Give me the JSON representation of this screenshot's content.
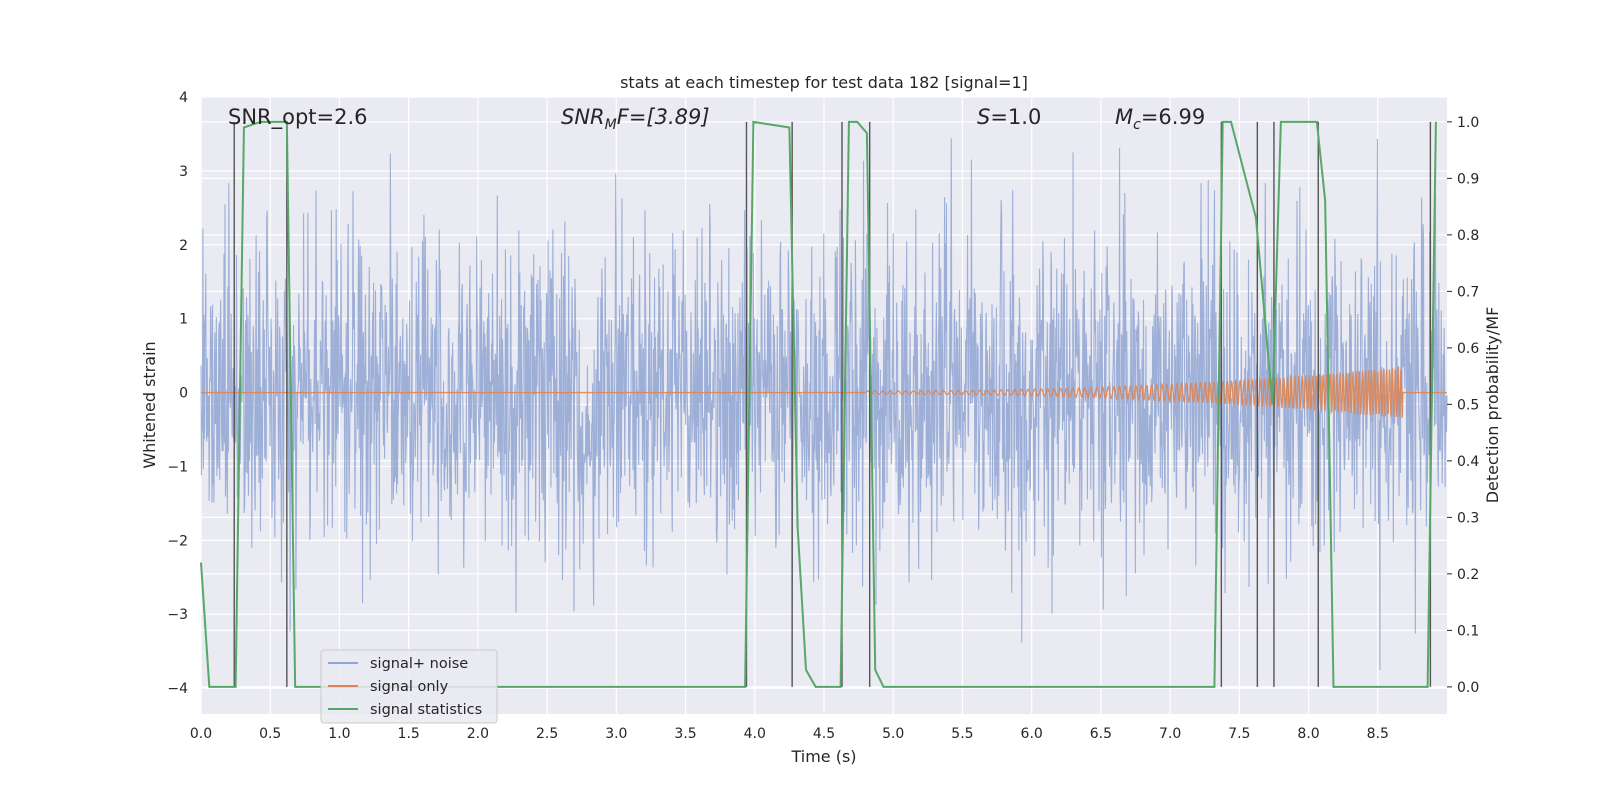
{
  "chart_data": {
    "type": "line",
    "title": "stats at each timestep for test data 182 [signal=1]",
    "xlabel": "Time (s)",
    "ylabel": "Whitened strain",
    "ylabel_right": "Detection probability/MF",
    "xlim": [
      0,
      9.0
    ],
    "ylim": [
      -4.35,
      4.0
    ],
    "ylim_right": [
      -0.048,
      1.044
    ],
    "x_ticks": [
      "0.0",
      "0.5",
      "1.0",
      "1.5",
      "2.0",
      "2.5",
      "3.0",
      "3.5",
      "4.0",
      "4.5",
      "5.0",
      "5.5",
      "6.0",
      "6.5",
      "7.0",
      "7.5",
      "8.0",
      "8.5"
    ],
    "y_ticks": [
      "4",
      "3",
      "2",
      "1",
      "0",
      "−1",
      "−2",
      "−3",
      "−4"
    ],
    "y_ticks_right": [
      "1.0",
      "0.9",
      "0.8",
      "0.7",
      "0.6",
      "0.5",
      "0.4",
      "0.3",
      "0.2",
      "0.1",
      "0.0"
    ],
    "annotations": {
      "snr_opt": "SNR_opt=2.6",
      "snr_mf_main": "SNR",
      "snr_mf_sub": "M",
      "snr_mf_tail": "F=[3.89]",
      "s_main": "S",
      "s_tail": "=1.0",
      "mc_main": "M",
      "mc_sub": "c",
      "mc_tail": "=6.99"
    },
    "series": [
      {
        "name": "signal+ noise",
        "color": "#8fa5d2",
        "kind": "noise",
        "amplitude_std": 1.0,
        "approx_range": [
          -4.0,
          3.6
        ]
      },
      {
        "name": "signal only",
        "color": "#dd8452",
        "kind": "chirp",
        "chirp_start": 4.8,
        "chirp_end": 8.68,
        "max_amplitude": 0.35
      },
      {
        "name": "signal statistics",
        "color": "#55a868",
        "x": [
          0.0,
          0.06,
          0.25,
          0.31,
          0.43,
          0.62,
          0.68,
          3.93,
          3.99,
          4.25,
          4.31,
          4.37,
          4.44,
          4.62,
          4.68,
          4.74,
          4.81,
          4.87,
          4.93,
          7.32,
          7.38,
          7.44,
          7.62,
          7.74,
          7.8,
          8.06,
          8.12,
          8.18,
          8.24,
          8.86,
          8.92
        ],
        "y": [
          0.22,
          0.0,
          0.0,
          0.99,
          1.0,
          1.0,
          0.0,
          0.0,
          1.0,
          0.99,
          0.28,
          0.03,
          0.0,
          0.0,
          1.0,
          1.0,
          0.98,
          0.03,
          0.0,
          0.0,
          1.0,
          1.0,
          0.83,
          0.5,
          1.0,
          1.0,
          0.86,
          0.0,
          0.0,
          0.0,
          1.0
        ]
      }
    ],
    "vlines": [
      0.24,
      0.62,
      3.94,
      4.27,
      4.63,
      4.83,
      7.37,
      7.63,
      7.75,
      8.07,
      8.88
    ],
    "legend": {
      "position": "bottom-left",
      "entries": [
        "signal+ noise",
        "signal only",
        "signal statistics"
      ]
    }
  },
  "colors": {
    "plot_bg": "#eaeaf2",
    "grid": "#ffffff",
    "vline": "#555555",
    "noise": "#8fa5d2",
    "signal": "#dd8452",
    "stats": "#55a868"
  }
}
